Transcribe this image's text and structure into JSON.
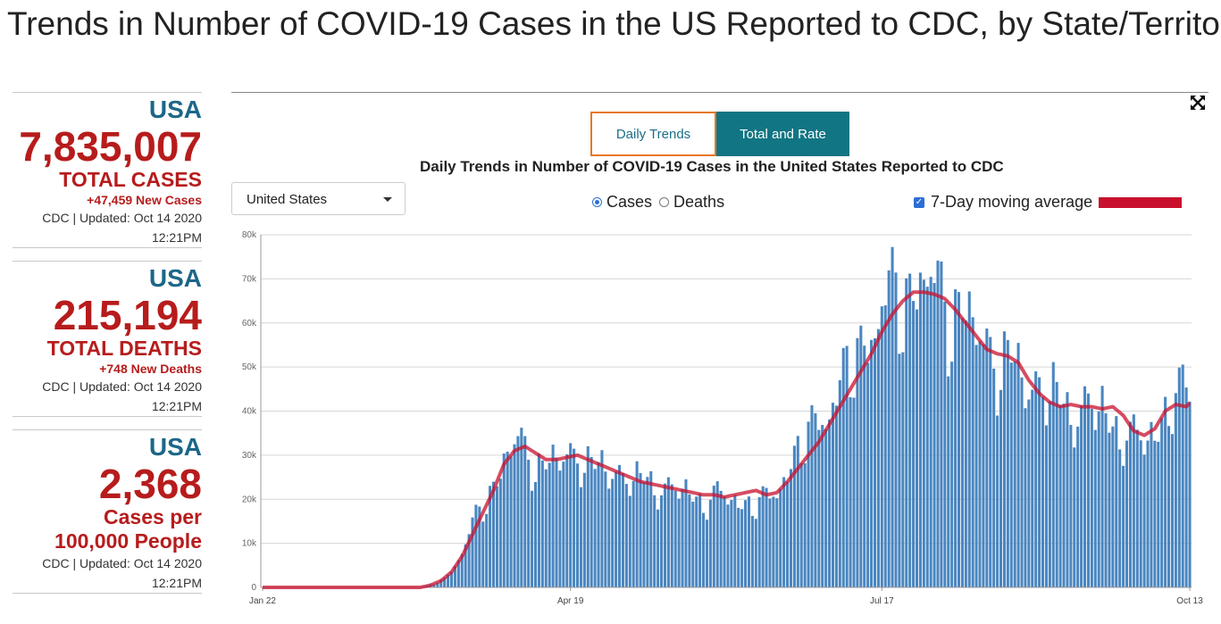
{
  "page": {
    "title": "Trends in Number of COVID-19 Cases in the US Reported to CDC, by State/Territory"
  },
  "stats": [
    {
      "region": "USA",
      "value": "7,835,007",
      "label_line1": "TOTAL CASES",
      "label_line2": "",
      "new": "+47,459 New Cases",
      "updated": "CDC | Updated: Oct 14 2020",
      "time": "12:21PM"
    },
    {
      "region": "USA",
      "value": "215,194",
      "label_line1": "TOTAL DEATHS",
      "label_line2": "",
      "new": "+748 New Deaths",
      "updated": "CDC | Updated: Oct 14 2020",
      "time": "12:21PM"
    },
    {
      "region": "USA",
      "value": "2,368",
      "label_line1": "Cases per",
      "label_line2": "100,000 People",
      "new": "",
      "updated": "CDC | Updated: Oct 14 2020",
      "time": "12:21PM"
    }
  ],
  "tabs": {
    "daily": "Daily Trends",
    "total": "Total and Rate"
  },
  "location": {
    "selected": "United States"
  },
  "metric": {
    "cases": "Cases",
    "deaths": "Deaths",
    "selected": "cases"
  },
  "moving_average": {
    "label": "7-Day moving average",
    "checked": true,
    "color": "#c8102e"
  },
  "colors": {
    "bar": "#4a86c0",
    "line": "#c8102e",
    "accent": "#e87722",
    "tab_active": "#117583"
  },
  "chart_data": {
    "type": "bar",
    "title": "Daily Trends in Number of COVID-19 Cases in the United States Reported to CDC",
    "start_date": "2020-01-22",
    "end_date": "2020-10-13",
    "xtick_labels": [
      "Jan 22",
      "Apr 19",
      "Jul 17",
      "Oct 13"
    ],
    "ylim": [
      0,
      80000
    ],
    "yticks": [
      0,
      10000,
      20000,
      30000,
      40000,
      50000,
      60000,
      70000,
      80000
    ],
    "ytick_labels": [
      "0",
      "10k",
      "20k",
      "30k",
      "40k",
      "50k",
      "60k",
      "70k",
      "80k"
    ],
    "series": [
      {
        "name": "Daily cases",
        "kind": "bar",
        "anchors": [
          [
            0,
            0
          ],
          [
            45,
            0
          ],
          [
            49,
            800
          ],
          [
            52,
            2000
          ],
          [
            55,
            5000
          ],
          [
            58,
            10000
          ],
          [
            61,
            16000
          ],
          [
            64,
            20000
          ],
          [
            67,
            25000
          ],
          [
            70,
            31000
          ],
          [
            73,
            33000
          ],
          [
            76,
            30000
          ],
          [
            80,
            28000
          ],
          [
            85,
            29000
          ],
          [
            90,
            31000
          ],
          [
            95,
            27000
          ],
          [
            100,
            27000
          ],
          [
            105,
            25000
          ],
          [
            110,
            24000
          ],
          [
            115,
            23000
          ],
          [
            120,
            22000
          ],
          [
            125,
            20000
          ],
          [
            130,
            21000
          ],
          [
            135,
            20000
          ],
          [
            140,
            19000
          ],
          [
            145,
            20000
          ],
          [
            150,
            27000
          ],
          [
            155,
            33000
          ],
          [
            160,
            40000
          ],
          [
            165,
            45000
          ],
          [
            170,
            53000
          ],
          [
            175,
            61000
          ],
          [
            180,
            66000
          ],
          [
            185,
            68000
          ],
          [
            190,
            70000
          ],
          [
            195,
            66000
          ],
          [
            200,
            62000
          ],
          [
            205,
            58000
          ],
          [
            210,
            52000
          ],
          [
            215,
            50000
          ],
          [
            220,
            47000
          ],
          [
            225,
            44000
          ],
          [
            230,
            41000
          ],
          [
            235,
            41000
          ],
          [
            240,
            40000
          ],
          [
            245,
            36000
          ],
          [
            250,
            33000
          ],
          [
            255,
            36000
          ],
          [
            260,
            42000
          ],
          [
            265,
            45000
          ],
          [
            270,
            44000
          ],
          [
            275,
            45000
          ],
          [
            280,
            48000
          ],
          [
            285,
            52000
          ],
          [
            288,
            52000
          ]
        ]
      },
      {
        "name": "7-Day moving average",
        "kind": "line",
        "anchors": [
          [
            0,
            0
          ],
          [
            45,
            0
          ],
          [
            48,
            500
          ],
          [
            51,
            1500
          ],
          [
            54,
            3500
          ],
          [
            57,
            7000
          ],
          [
            60,
            12000
          ],
          [
            63,
            17000
          ],
          [
            66,
            22000
          ],
          [
            69,
            28000
          ],
          [
            72,
            31000
          ],
          [
            75,
            32000
          ],
          [
            78,
            30500
          ],
          [
            81,
            29000
          ],
          [
            84,
            29000
          ],
          [
            87,
            29500
          ],
          [
            90,
            30000
          ],
          [
            93,
            29000
          ],
          [
            96,
            28000
          ],
          [
            99,
            27000
          ],
          [
            102,
            26000
          ],
          [
            105,
            25000
          ],
          [
            108,
            24000
          ],
          [
            111,
            23500
          ],
          [
            114,
            23000
          ],
          [
            117,
            22500
          ],
          [
            120,
            22000
          ],
          [
            123,
            21500
          ],
          [
            126,
            21000
          ],
          [
            129,
            21000
          ],
          [
            132,
            20500
          ],
          [
            135,
            21000
          ],
          [
            138,
            21500
          ],
          [
            141,
            22000
          ],
          [
            144,
            21000
          ],
          [
            147,
            21500
          ],
          [
            150,
            24000
          ],
          [
            153,
            27000
          ],
          [
            156,
            30000
          ],
          [
            159,
            33000
          ],
          [
            162,
            37000
          ],
          [
            165,
            41000
          ],
          [
            168,
            45000
          ],
          [
            171,
            49000
          ],
          [
            174,
            53000
          ],
          [
            177,
            58000
          ],
          [
            180,
            62000
          ],
          [
            183,
            65000
          ],
          [
            186,
            67000
          ],
          [
            189,
            67000
          ],
          [
            192,
            66500
          ],
          [
            195,
            65500
          ],
          [
            198,
            63000
          ],
          [
            201,
            60000
          ],
          [
            204,
            57000
          ],
          [
            207,
            54000
          ],
          [
            210,
            53000
          ],
          [
            213,
            52500
          ],
          [
            216,
            51000
          ],
          [
            219,
            47000
          ],
          [
            222,
            44000
          ],
          [
            225,
            42000
          ],
          [
            228,
            41000
          ],
          [
            231,
            41500
          ],
          [
            234,
            41000
          ],
          [
            237,
            41000
          ],
          [
            240,
            40500
          ],
          [
            243,
            41000
          ],
          [
            246,
            39000
          ],
          [
            249,
            35500
          ],
          [
            252,
            34500
          ],
          [
            255,
            36000
          ],
          [
            258,
            40000
          ],
          [
            261,
            41500
          ],
          [
            264,
            41000
          ],
          [
            267,
            43500
          ],
          [
            270,
            43000
          ],
          [
            273,
            44000
          ],
          [
            276,
            43000
          ],
          [
            279,
            43000
          ],
          [
            282,
            45000
          ],
          [
            285,
            48000
          ],
          [
            288,
            51500
          ]
        ]
      }
    ]
  }
}
